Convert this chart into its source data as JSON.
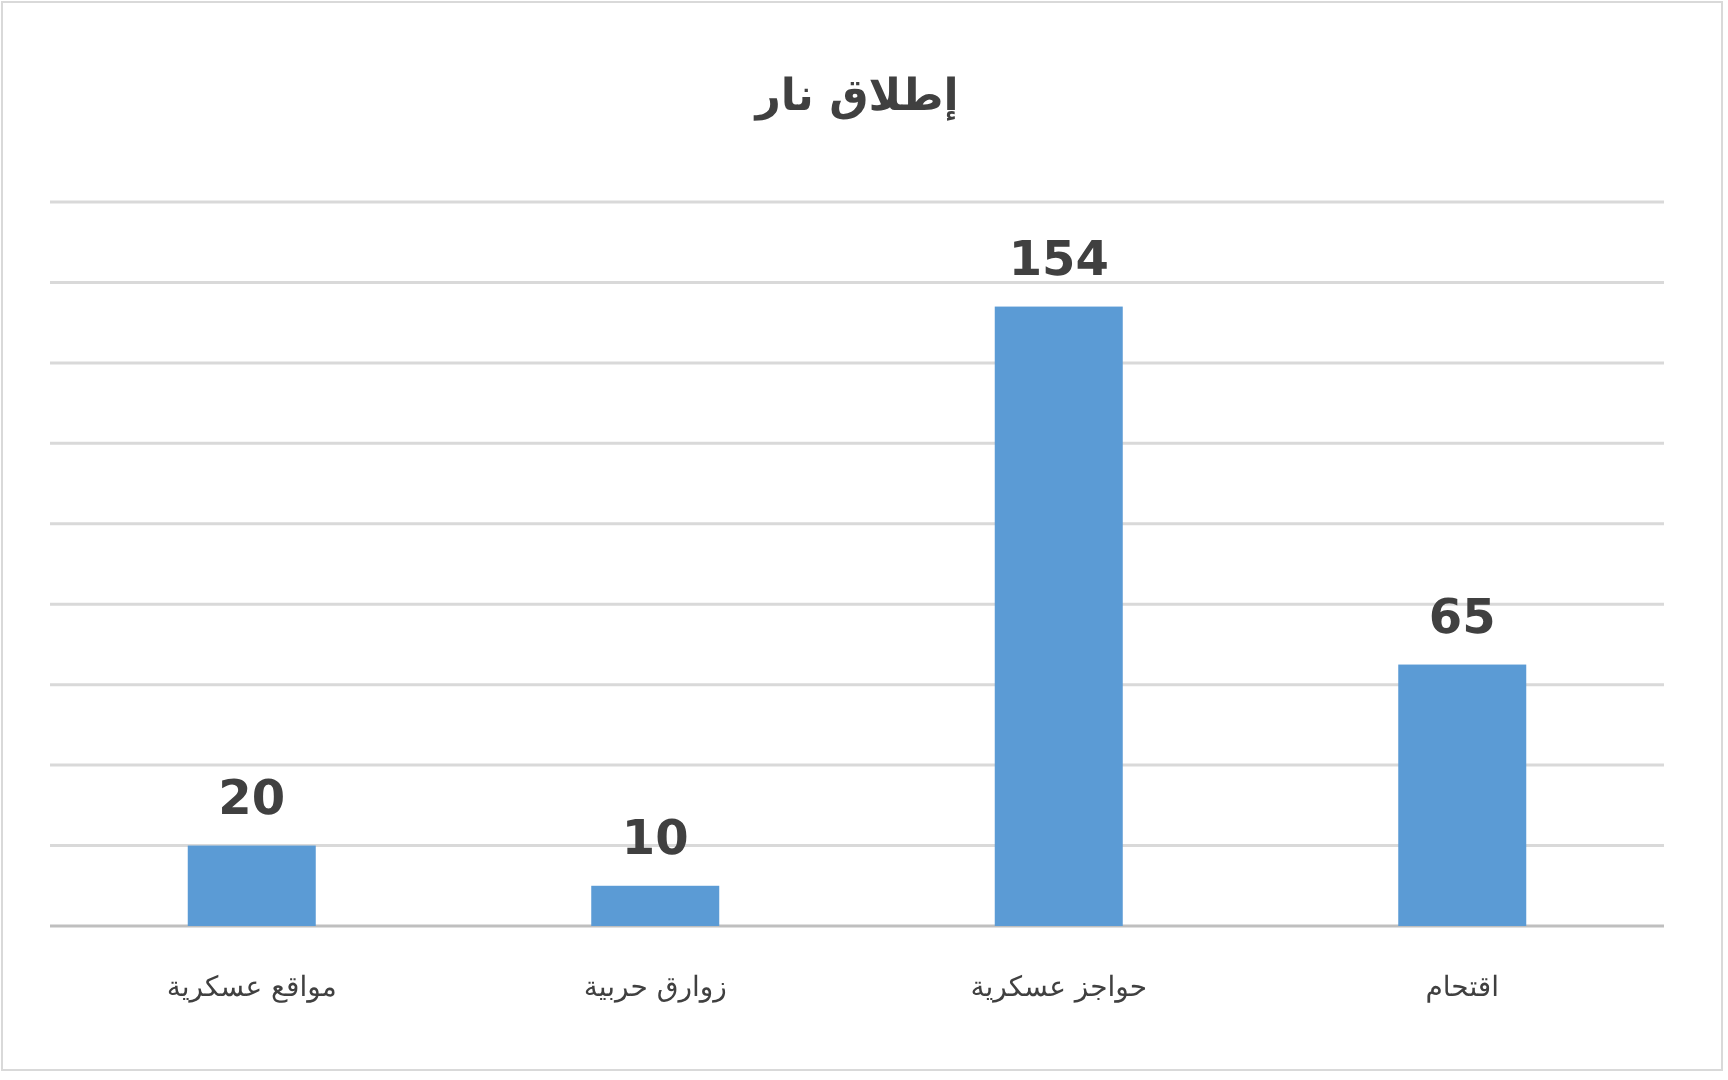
{
  "chart_data": {
    "type": "bar",
    "title": "إطلاق نار",
    "categories": [
      "مواقع عسكرية",
      "زوارق حربية",
      "حواجز عسكرية",
      "اقتحام"
    ],
    "values": [
      20,
      10,
      154,
      65
    ],
    "color": "#5b9bd5",
    "ylim": [
      0,
      180
    ],
    "yticks": [
      {
        "value": 0,
        "label": null
      },
      {
        "value": 20,
        "label": null
      },
      {
        "value": 40,
        "label": null
      },
      {
        "value": 60,
        "label": null
      },
      {
        "value": 80,
        "label": null
      },
      {
        "value": 100,
        "label": null
      },
      {
        "value": 120,
        "label": null
      },
      {
        "value": 140,
        "label": null
      },
      {
        "value": 160,
        "label": null
      },
      {
        "value": 180,
        "label": null
      }
    ],
    "tick_labels": "x",
    "grid": "y",
    "data_labels": true
  }
}
